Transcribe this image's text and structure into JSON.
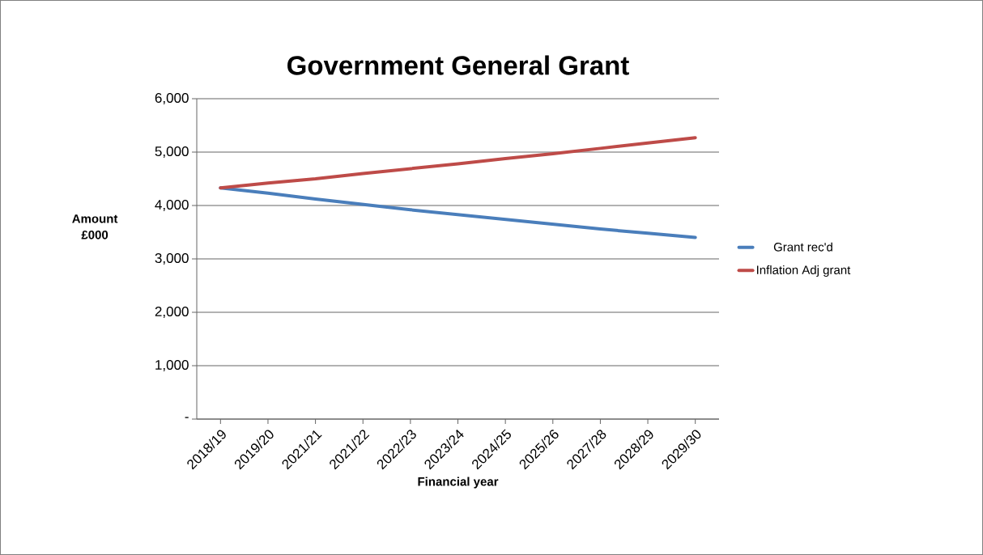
{
  "chart_data": {
    "type": "line",
    "title": "Government General Grant",
    "xlabel": "Financial year",
    "ylabel": "Amount £000",
    "categories": [
      "2018/19",
      "2019/20",
      "2021/21",
      "2021/22",
      "2022/23",
      "2023/24",
      "2024/25",
      "2025/26",
      "2027/28",
      "2028/29",
      "2029/30"
    ],
    "series": [
      {
        "name": "Grant rec'd",
        "color": "#4a7ebb",
        "values": [
          4330,
          4230,
          4120,
          4020,
          3920,
          3830,
          3740,
          3650,
          3560,
          3480,
          3400
        ]
      },
      {
        "name": "Inflation Adj grant",
        "color": "#be4b48",
        "values": [
          4330,
          4420,
          4500,
          4600,
          4690,
          4780,
          4880,
          4970,
          5070,
          5170,
          5270
        ]
      }
    ],
    "ylim": [
      0,
      6000
    ],
    "yticks": [
      {
        "value": 0,
        "label": "-"
      },
      {
        "value": 1000,
        "label": "1,000"
      },
      {
        "value": 2000,
        "label": "2,000"
      },
      {
        "value": 3000,
        "label": "3,000"
      },
      {
        "value": 4000,
        "label": "4,000"
      },
      {
        "value": 5000,
        "label": "5,000"
      },
      {
        "value": 6000,
        "label": "6,000"
      }
    ],
    "grid": "y",
    "legend": "right",
    "marker": "none",
    "line_style": "solid"
  }
}
